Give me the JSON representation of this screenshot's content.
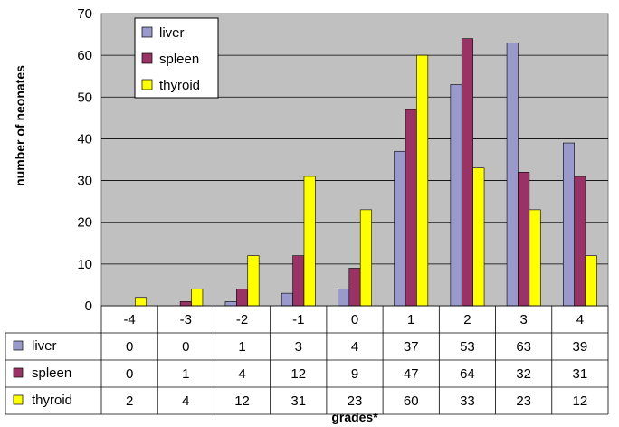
{
  "chart_data": {
    "type": "bar",
    "xlabel": "grades*",
    "ylabel": "number of neonates",
    "ylim": [
      0,
      70
    ],
    "yticks": [
      0,
      10,
      20,
      30,
      40,
      50,
      60,
      70
    ],
    "grid": true,
    "legend_position": "top-left",
    "categories": [
      "-4",
      "-3",
      "-2",
      "-1",
      "0",
      "1",
      "2",
      "3",
      "4"
    ],
    "series": [
      {
        "name": "liver",
        "color": "#9999CC",
        "values": [
          0,
          0,
          1,
          3,
          4,
          37,
          53,
          63,
          39
        ]
      },
      {
        "name": "spleen",
        "color": "#993366",
        "values": [
          0,
          1,
          4,
          12,
          9,
          47,
          64,
          32,
          31
        ]
      },
      {
        "name": "thyroid",
        "color": "#FFFF00",
        "values": [
          2,
          4,
          12,
          31,
          23,
          60,
          33,
          23,
          12
        ]
      }
    ],
    "plot_background": "#C0C0C0",
    "data_table": true
  }
}
